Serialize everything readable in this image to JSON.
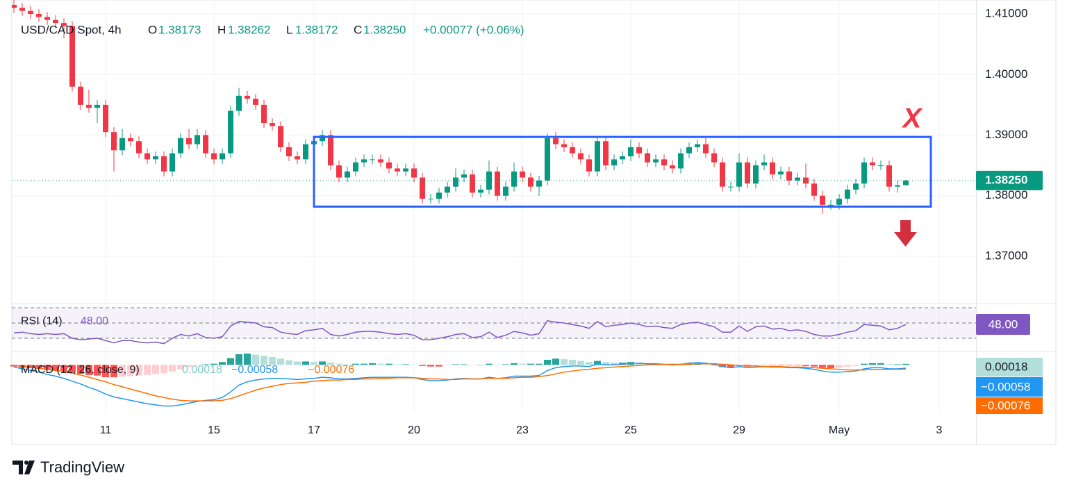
{
  "chart_data": {
    "type": "candlestick",
    "title": "USD/CAD Spot, 4h",
    "ohlc_labels": [
      "O",
      "H",
      "L",
      "C"
    ],
    "change_label": "+0.00077 (+0.06%)",
    "brand": "TradingView",
    "categories": [
      null,
      null,
      null,
      null,
      null,
      null,
      null,
      null,
      null,
      null,
      null,
      "11",
      null,
      null,
      null,
      null,
      null,
      null,
      null,
      null,
      null,
      null,
      null,
      null,
      "15",
      null,
      null,
      null,
      null,
      null,
      null,
      null,
      null,
      null,
      null,
      null,
      "17",
      null,
      null,
      null,
      null,
      null,
      null,
      null,
      null,
      null,
      null,
      null,
      "20",
      null,
      null,
      null,
      null,
      null,
      null,
      null,
      null,
      null,
      null,
      null,
      null,
      "23",
      null,
      null,
      null,
      null,
      null,
      null,
      null,
      null,
      null,
      null,
      null,
      null,
      "25",
      null,
      null,
      null,
      null,
      null,
      null,
      null,
      null,
      null,
      null,
      null,
      null,
      "29",
      null,
      null,
      null,
      null,
      null,
      null,
      null,
      null,
      null,
      null,
      null,
      "May",
      null,
      null,
      null,
      null,
      null,
      null,
      null,
      null,
      null,
      null,
      null,
      "3"
    ],
    "open": [
      1.4115,
      1.411,
      1.4105,
      1.41,
      1.4095,
      1.409,
      1.4085,
      1.408,
      1.398,
      1.395,
      1.3945,
      1.395,
      1.3905,
      1.3875,
      1.3895,
      1.389,
      1.387,
      1.386,
      1.3865,
      1.384,
      1.387,
      1.3895,
      1.3885,
      1.39,
      1.387,
      1.386,
      1.387,
      1.394,
      1.3965,
      1.396,
      1.395,
      1.392,
      1.3915,
      1.388,
      1.3865,
      1.386,
      1.3885,
      1.389,
      1.39,
      1.385,
      1.383,
      1.384,
      1.3855,
      1.386,
      1.386,
      1.3855,
      1.3845,
      1.384,
      1.3845,
      1.383,
      1.3795,
      1.3795,
      1.3805,
      1.3815,
      1.383,
      1.3835,
      1.3805,
      1.381,
      1.384,
      1.38,
      1.3815,
      1.384,
      1.383,
      1.3815,
      1.3825,
      1.3895,
      1.3885,
      1.388,
      1.387,
      1.386,
      1.384,
      1.389,
      1.385,
      1.386,
      1.3865,
      1.388,
      1.387,
      1.3855,
      1.386,
      1.385,
      1.3845,
      1.387,
      1.388,
      1.3885,
      1.387,
      1.3855,
      1.3815,
      1.3815,
      1.3855,
      1.382,
      1.385,
      1.3855,
      1.3835,
      1.384,
      1.3825,
      1.383,
      1.382,
      1.38,
      1.3785,
      1.3785,
      1.3795,
      1.381,
      1.382,
      1.3855,
      1.385,
      1.385,
      1.3815,
      1.38173,
      null,
      null,
      null,
      null
    ],
    "high": [
      1.4125,
      1.4118,
      1.4113,
      1.4108,
      1.4103,
      1.4098,
      1.4093,
      1.4088,
      1.3988,
      1.3975,
      1.3958,
      1.3958,
      1.3913,
      1.391,
      1.3903,
      1.3898,
      1.3878,
      1.3873,
      1.3873,
      1.3878,
      1.3903,
      1.391,
      1.391,
      1.3908,
      1.3878,
      1.3878,
      1.3948,
      1.3978,
      1.3973,
      1.3968,
      1.3958,
      1.3928,
      1.3923,
      1.3888,
      1.3873,
      1.3893,
      1.3898,
      1.3908,
      1.3908,
      1.3858,
      1.3848,
      1.3863,
      1.3868,
      1.3868,
      1.3868,
      1.3863,
      1.3853,
      1.3853,
      1.3853,
      1.3838,
      1.3803,
      1.3813,
      1.3823,
      1.3845,
      1.3843,
      1.3843,
      1.3818,
      1.3858,
      1.3848,
      1.3823,
      1.3855,
      1.3848,
      1.3838,
      1.3833,
      1.3903,
      1.3905,
      1.3893,
      1.3888,
      1.3878,
      1.3868,
      1.3898,
      1.3898,
      1.3868,
      1.3873,
      1.3893,
      1.3888,
      1.3878,
      1.3868,
      1.3868,
      1.3858,
      1.3878,
      1.3888,
      1.3893,
      1.3895,
      1.3878,
      1.3863,
      1.3823,
      1.387,
      1.3863,
      1.3858,
      1.3868,
      1.3863,
      1.3848,
      1.3848,
      1.3838,
      1.3853,
      1.3828,
      1.3808,
      1.3793,
      1.3803,
      1.3818,
      1.3828,
      1.3863,
      1.3863,
      1.3858,
      1.3858,
      1.3825,
      1.38262,
      null,
      null,
      null,
      null
    ],
    "low": [
      1.4102,
      1.4097,
      1.4092,
      1.4087,
      1.4082,
      1.4077,
      1.406,
      1.3972,
      1.3942,
      1.3937,
      1.392,
      1.3897,
      1.384,
      1.3867,
      1.3882,
      1.3862,
      1.3852,
      1.3852,
      1.3832,
      1.3832,
      1.3862,
      1.3877,
      1.3877,
      1.3862,
      1.3852,
      1.3852,
      1.3862,
      1.3932,
      1.3952,
      1.3942,
      1.3912,
      1.3907,
      1.3872,
      1.3857,
      1.3852,
      1.3852,
      1.3877,
      1.3882,
      1.3842,
      1.3822,
      1.3822,
      1.3832,
      1.3847,
      1.3852,
      1.3847,
      1.3837,
      1.3832,
      1.3832,
      1.3822,
      1.3787,
      1.3787,
      1.3787,
      1.3797,
      1.3807,
      1.3822,
      1.3797,
      1.3797,
      1.3802,
      1.3792,
      1.3792,
      1.3807,
      1.3822,
      1.3807,
      1.38,
      1.3817,
      1.3877,
      1.3872,
      1.3862,
      1.3852,
      1.3832,
      1.3832,
      1.3842,
      1.3842,
      1.3852,
      1.3857,
      1.3862,
      1.3847,
      1.3847,
      1.3842,
      1.3837,
      1.3837,
      1.3862,
      1.3872,
      1.3862,
      1.3847,
      1.3807,
      1.3807,
      1.3807,
      1.3812,
      1.3812,
      1.3842,
      1.3827,
      1.3827,
      1.3817,
      1.3817,
      1.3812,
      1.3792,
      1.377,
      1.3777,
      1.3777,
      1.3787,
      1.3802,
      1.3812,
      1.3842,
      1.3842,
      1.3807,
      1.3805,
      1.38172,
      null,
      null,
      null,
      null
    ],
    "close": [
      1.411,
      1.4105,
      1.41,
      1.4095,
      1.409,
      1.4085,
      1.408,
      1.398,
      1.395,
      1.3945,
      1.395,
      1.3905,
      1.3875,
      1.3895,
      1.389,
      1.387,
      1.386,
      1.3865,
      1.384,
      1.387,
      1.3895,
      1.3885,
      1.39,
      1.387,
      1.386,
      1.387,
      1.394,
      1.3965,
      1.396,
      1.395,
      1.392,
      1.3915,
      1.388,
      1.3865,
      1.386,
      1.3885,
      1.389,
      1.39,
      1.385,
      1.383,
      1.384,
      1.3855,
      1.386,
      1.386,
      1.3855,
      1.3845,
      1.384,
      1.3845,
      1.383,
      1.3795,
      1.3795,
      1.3805,
      1.3815,
      1.383,
      1.3835,
      1.3805,
      1.381,
      1.384,
      1.38,
      1.3815,
      1.384,
      1.383,
      1.3815,
      1.3825,
      1.3895,
      1.3885,
      1.388,
      1.387,
      1.386,
      1.384,
      1.389,
      1.385,
      1.386,
      1.3865,
      1.388,
      1.387,
      1.3855,
      1.386,
      1.385,
      1.3845,
      1.387,
      1.388,
      1.3885,
      1.387,
      1.3855,
      1.3815,
      1.3815,
      1.3855,
      1.382,
      1.385,
      1.3855,
      1.3835,
      1.384,
      1.3825,
      1.383,
      1.382,
      1.38,
      1.3785,
      1.3785,
      1.3795,
      1.381,
      1.382,
      1.3855,
      1.385,
      1.385,
      1.3815,
      1.38173,
      1.3825,
      null,
      null,
      null,
      null
    ],
    "colors": {
      "up": "#089981",
      "down": "#f23645"
    },
    "ylim": [
      1.3622,
      1.4123
    ],
    "yticks": [
      {
        "value": 1.41,
        "label": "1.41000"
      },
      {
        "value": 1.4,
        "label": "1.40000"
      },
      {
        "value": 1.39,
        "label": "1.39000"
      },
      {
        "value": 1.38,
        "label": "1.38000"
      },
      {
        "value": 1.37,
        "label": "1.37000"
      }
    ],
    "grid": true,
    "last_price": {
      "value": 1.3825,
      "label": "1.38250"
    },
    "annotations": {
      "box": {
        "x0": 36,
        "x1": 110,
        "y0": 1.3782,
        "y1": 1.3897,
        "color": "#2962ff"
      },
      "label": "X"
    },
    "rsi": {
      "name": "RSI (14)",
      "color": "#7e57c2",
      "value_label": "48.00",
      "ylim": [
        13.6,
        75.5
      ],
      "bands": [
        30,
        50,
        70
      ],
      "values": [
        37,
        38,
        36,
        35,
        36,
        35,
        36,
        30,
        28,
        29,
        30,
        27,
        24,
        27,
        27,
        25,
        24,
        25,
        23,
        30,
        35,
        33,
        36,
        31,
        30,
        32,
        46,
        52,
        51,
        50,
        45,
        44,
        38,
        36,
        35,
        40,
        41,
        43,
        35,
        33,
        35,
        38,
        39,
        39,
        38,
        36,
        35,
        36,
        34,
        28,
        28,
        30,
        32,
        35,
        36,
        31,
        32,
        38,
        31,
        34,
        39,
        37,
        34,
        36,
        53,
        51,
        50,
        48,
        46,
        43,
        52,
        45,
        47,
        48,
        50,
        48,
        45,
        46,
        44,
        43,
        48,
        50,
        51,
        48,
        45,
        38,
        38,
        46,
        39,
        45,
        46,
        42,
        43,
        40,
        41,
        39,
        35,
        33,
        33,
        35,
        38,
        40,
        48,
        47,
        46,
        41,
        43,
        48,
        null,
        null,
        null,
        null
      ]
    },
    "macd": {
      "name": "MACD (12, 26, close, 9)",
      "ylim": [
        -0.0086,
        0.0025
      ],
      "histogram": {
        "value_label": "0.00018",
        "colors": [
          "#26a69a",
          "#b2dfdb",
          "#ff5252",
          "#ffcdd2"
        ],
        "values": [
          -0.0003,
          -0.0005,
          -0.0006,
          -0.0007,
          -0.0009,
          -0.001,
          -0.0012,
          -0.0014,
          -0.0016,
          -0.0018,
          -0.0019,
          -0.0022,
          -0.0022,
          -0.0021,
          -0.002,
          -0.0019,
          -0.0018,
          -0.0016,
          -0.0015,
          -0.0012,
          -0.0008,
          -0.0004,
          -0.0001,
          0.0001,
          0.0002,
          0.0005,
          0.0012,
          0.0019,
          0.002,
          0.0018,
          0.0016,
          0.0014,
          0.0011,
          0.0008,
          0.0006,
          0.0006,
          0.0005,
          0.0006,
          0.0004,
          0.0002,
          0.0001,
          0.0002,
          0.0002,
          0.0003,
          0.0002,
          0.0002,
          0.0001,
          0.0001,
          0,
          -0.0002,
          -0.0003,
          -0.0003,
          -0.0001,
          0.0001,
          0.0001,
          0,
          0,
          0.0002,
          0,
          0.0001,
          0.0003,
          0.0002,
          0.0002,
          0.0002,
          0.0009,
          0.0011,
          0.001,
          0.0009,
          0.0007,
          0.0005,
          0.0007,
          0.0005,
          0.0004,
          0.0004,
          0.0005,
          0.0004,
          0.0002,
          0.0002,
          0,
          -0.0001,
          0,
          0.0002,
          0.0002,
          0.0001,
          -0.0001,
          -0.0004,
          -0.0005,
          -0.0002,
          -0.0003,
          -0.0002,
          0,
          -0.0001,
          -0.0001,
          -0.0001,
          -0.0001,
          -0.0002,
          -0.0003,
          -0.0005,
          -0.0006,
          -0.0005,
          -0.0003,
          -0.0002,
          0.0002,
          0.0003,
          0.0003,
          0.0001,
          0.0001,
          0.00018,
          null,
          null,
          null,
          null
        ]
      },
      "macd": {
        "value_label": "−0.00058",
        "color": "#2196f3",
        "values": [
          -0.0004,
          -0.0007,
          -0.001,
          -0.0013,
          -0.0017,
          -0.002,
          -0.0024,
          -0.0029,
          -0.0034,
          -0.004,
          -0.0045,
          -0.0052,
          -0.0057,
          -0.006,
          -0.0063,
          -0.0066,
          -0.0069,
          -0.0071,
          -0.0073,
          -0.0073,
          -0.0071,
          -0.0068,
          -0.0065,
          -0.0063,
          -0.0062,
          -0.0058,
          -0.0048,
          -0.0036,
          -0.003,
          -0.0027,
          -0.0025,
          -0.0024,
          -0.0024,
          -0.0025,
          -0.0026,
          -0.0025,
          -0.0024,
          -0.0022,
          -0.0023,
          -0.0025,
          -0.0025,
          -0.0024,
          -0.0023,
          -0.0022,
          -0.0022,
          -0.0022,
          -0.0022,
          -0.0022,
          -0.0023,
          -0.0026,
          -0.0028,
          -0.0028,
          -0.0027,
          -0.0025,
          -0.0024,
          -0.0025,
          -0.0025,
          -0.0022,
          -0.0024,
          -0.0023,
          -0.002,
          -0.002,
          -0.002,
          -0.0019,
          -0.001,
          -0.0005,
          -0.0003,
          -0.0002,
          -0.0002,
          -0.0003,
          0.0001,
          0,
          0,
          0.0001,
          0.0003,
          0.0003,
          0.0002,
          0.0002,
          0.0001,
          0,
          0.0001,
          0.0003,
          0.0004,
          0.0003,
          0.0001,
          -0.0003,
          -0.0005,
          -0.0003,
          -0.0005,
          -0.0004,
          -0.0003,
          -0.0004,
          -0.0004,
          -0.0005,
          -0.0005,
          -0.0006,
          -0.0008,
          -0.0011,
          -0.0013,
          -0.0013,
          -0.0012,
          -0.0011,
          -0.0007,
          -0.0005,
          -0.0005,
          -0.0007,
          -0.0007,
          -0.00058,
          null,
          null,
          null,
          null
        ]
      },
      "signal": {
        "value_label": "−0.00076",
        "color": "#ff6d00",
        "values": [
          -0.0001,
          -0.0002,
          -0.0004,
          -0.0006,
          -0.0008,
          -0.001,
          -0.0012,
          -0.0015,
          -0.0018,
          -0.0022,
          -0.0026,
          -0.003,
          -0.0035,
          -0.0039,
          -0.0043,
          -0.0047,
          -0.0051,
          -0.0055,
          -0.0058,
          -0.0061,
          -0.0063,
          -0.0064,
          -0.0064,
          -0.0064,
          -0.0064,
          -0.0063,
          -0.006,
          -0.0055,
          -0.005,
          -0.0045,
          -0.0041,
          -0.0038,
          -0.0035,
          -0.0033,
          -0.0032,
          -0.0031,
          -0.0029,
          -0.0028,
          -0.0027,
          -0.0027,
          -0.0026,
          -0.0026,
          -0.0025,
          -0.0025,
          -0.0024,
          -0.0024,
          -0.0023,
          -0.0023,
          -0.0023,
          -0.0024,
          -0.0025,
          -0.0025,
          -0.0026,
          -0.0026,
          -0.0025,
          -0.0025,
          -0.0025,
          -0.0024,
          -0.0024,
          -0.0024,
          -0.0023,
          -0.0022,
          -0.0022,
          -0.0021,
          -0.0019,
          -0.0016,
          -0.0013,
          -0.0011,
          -0.0009,
          -0.0008,
          -0.0006,
          -0.0005,
          -0.0004,
          -0.0003,
          -0.0002,
          -0.0001,
          0,
          0,
          0.0001,
          0.0001,
          0.0001,
          0.0001,
          0.0002,
          0.0002,
          0.0002,
          0.0001,
          0,
          -0.0001,
          -0.0002,
          -0.0002,
          -0.0003,
          -0.0003,
          -0.0003,
          -0.0004,
          -0.0004,
          -0.0004,
          -0.0005,
          -0.0006,
          -0.0007,
          -0.0008,
          -0.0009,
          -0.0009,
          -0.0009,
          -0.0008,
          -0.0008,
          -0.0008,
          -0.0008,
          -0.00076,
          null,
          null,
          null,
          null
        ]
      }
    }
  }
}
